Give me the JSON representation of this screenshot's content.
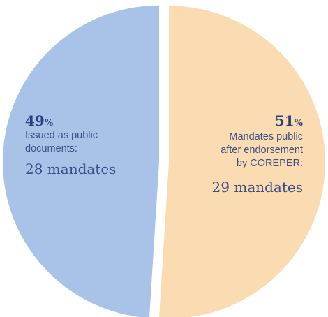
{
  "chart_data": {
    "type": "pie",
    "slices": [
      {
        "percent": 49,
        "percent_label": "49",
        "percent_sign": "%",
        "description_lines": [
          "Issued as public",
          "documents:"
        ],
        "count_label": "28 mandates",
        "value": 28,
        "color": "#a9c3e8"
      },
      {
        "percent": 51,
        "percent_label": "51",
        "percent_sign": "%",
        "description_lines": [
          "Mandates public",
          "after endorsement",
          "by COREPER:"
        ],
        "count_label": "29 mandates",
        "value": 29,
        "color": "#fbdcb2"
      }
    ],
    "label_color": "#2b3f7e",
    "text_color": "#3a4f86"
  }
}
